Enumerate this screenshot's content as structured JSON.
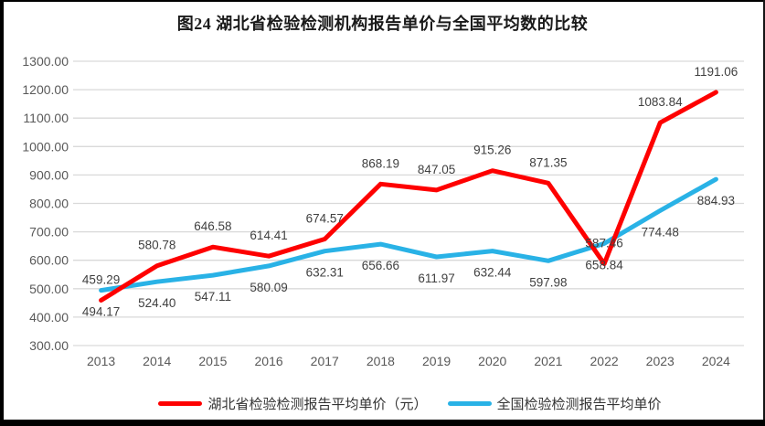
{
  "chart_data": {
    "type": "line",
    "title": "图24 湖北省检验检测机构报告单价与全国平均数的比较",
    "categories": [
      "2013",
      "2014",
      "2015",
      "2016",
      "2017",
      "2018",
      "2019",
      "2020",
      "2021",
      "2022",
      "2023",
      "2024"
    ],
    "series": [
      {
        "name": "湖北省检验检测报告平均单价（元）",
        "color": "#FE0000",
        "label_position": "above",
        "values": [
          459.29,
          580.78,
          646.58,
          614.41,
          674.57,
          868.19,
          847.05,
          915.26,
          871.35,
          587.46,
          1083.84,
          1191.06
        ]
      },
      {
        "name": "全国检验检测报告平均单价",
        "color": "#29B2E6",
        "label_position": "below",
        "values": [
          494.17,
          524.4,
          547.11,
          580.09,
          632.31,
          656.66,
          611.97,
          632.44,
          597.98,
          658.84,
          774.48,
          884.93
        ]
      }
    ],
    "ylim": [
      300,
      1300
    ],
    "ytick_step": 100,
    "ytick_labels": [
      "300.00",
      "400.00",
      "500.00",
      "600.00",
      "700.00",
      "800.00",
      "900.00",
      "1000.00",
      "1100.00",
      "1200.00",
      "1300.00"
    ],
    "value_decimals": 2,
    "grid": true,
    "legend_position": "bottom",
    "gridline_color": "#D9D9D9",
    "axis_label_color": "#595959",
    "data_label_color": "#404040"
  }
}
